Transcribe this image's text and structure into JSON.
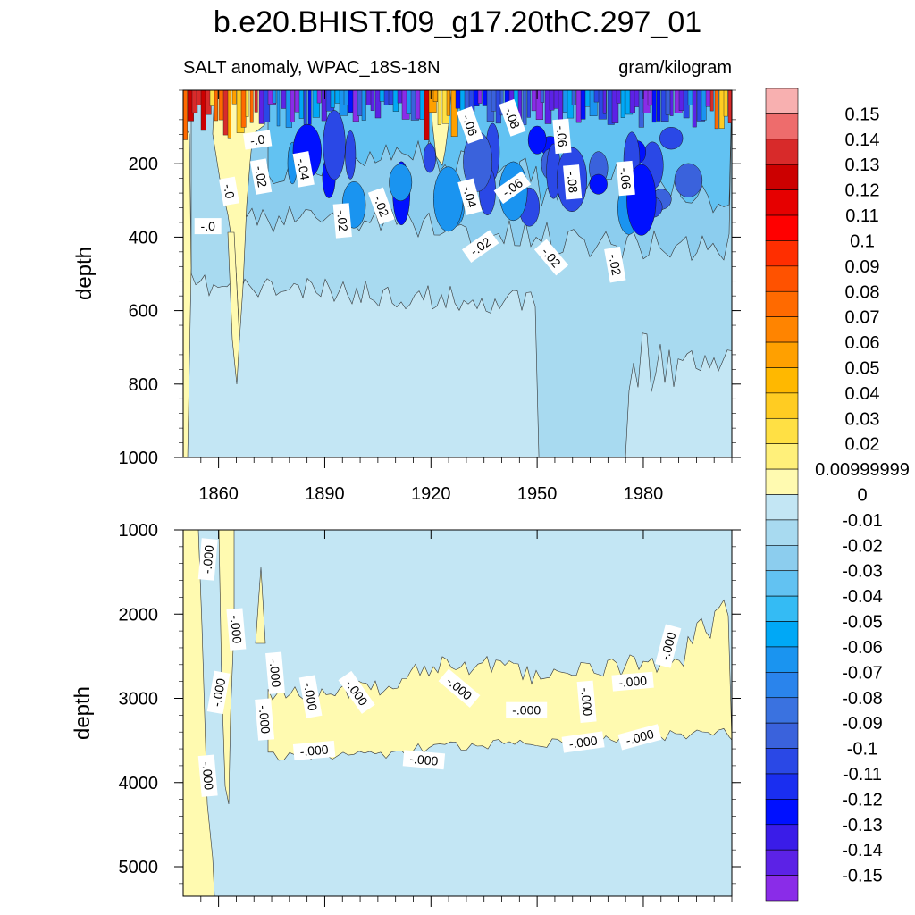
{
  "figure": {
    "title": "b.e20.BHIST.f09_g17.20thC.297_01",
    "subtitle_left": "SALT anomaly, WPAC_18S-18N",
    "subtitle_right": "gram/kilogram"
  },
  "chart_data": [
    {
      "type": "contour",
      "panel": "upper",
      "xlabel": "",
      "ylabel": "depth",
      "xlim": [
        1850,
        2005
      ],
      "ylim": [
        0,
        1000
      ],
      "y_inverted": true,
      "x_ticks": [
        1860,
        1890,
        1920,
        1950,
        1980
      ],
      "x_tick_labels": [
        "1860",
        "1890",
        "1920",
        "1950",
        "1980"
      ],
      "y_ticks": [
        200,
        400,
        600,
        800,
        1000
      ],
      "y_tick_labels": [
        "200",
        "400",
        "600",
        "800",
        "1000"
      ],
      "contour_labels": [
        {
          "text": "-.0",
          "x": 1871,
          "y": 135,
          "rot": -8
        },
        {
          "text": "-.02",
          "x": 1872,
          "y": 235,
          "rot": 80
        },
        {
          "text": "-.0",
          "x": 1863,
          "y": 275,
          "rot": 80
        },
        {
          "text": "-.0",
          "x": 1857,
          "y": 370,
          "rot": 0
        },
        {
          "text": "-.04",
          "x": 1884,
          "y": 215,
          "rot": 80
        },
        {
          "text": "-.02",
          "x": 1895,
          "y": 355,
          "rot": 85
        },
        {
          "text": "-.02",
          "x": 1906,
          "y": 315,
          "rot": 70
        },
        {
          "text": "-.06",
          "x": 1931,
          "y": 95,
          "rot": 70
        },
        {
          "text": "-.08",
          "x": 1943,
          "y": 75,
          "rot": 70
        },
        {
          "text": "-.04",
          "x": 1931,
          "y": 290,
          "rot": 75
        },
        {
          "text": "-.06",
          "x": 1943,
          "y": 265,
          "rot": -35
        },
        {
          "text": "-.02",
          "x": 1934,
          "y": 425,
          "rot": -35
        },
        {
          "text": "-.06",
          "x": 1957,
          "y": 125,
          "rot": 85
        },
        {
          "text": "-.08",
          "x": 1960,
          "y": 250,
          "rot": 85
        },
        {
          "text": "-.02",
          "x": 1954,
          "y": 455,
          "rot": 50
        },
        {
          "text": "-.06",
          "x": 1975,
          "y": 240,
          "rot": 85
        },
        {
          "text": "-.02",
          "x": 1972,
          "y": 475,
          "rot": 80
        }
      ]
    },
    {
      "type": "contour",
      "panel": "lower",
      "xlabel": "",
      "ylabel": "depth",
      "xlim": [
        1850,
        2005
      ],
      "ylim": [
        1000,
        5350
      ],
      "y_inverted": true,
      "x_ticks": [
        1860,
        1890,
        1920,
        1950,
        1980
      ],
      "y_ticks": [
        1000,
        2000,
        3000,
        4000,
        5000
      ],
      "y_tick_labels": [
        "1000",
        "2000",
        "3000",
        "4000",
        "5000"
      ],
      "contour_labels": [
        {
          "text": "-.000",
          "x": 1857,
          "y": 1350,
          "rot": -85
        },
        {
          "text": "-.000",
          "x": 1865,
          "y": 2180,
          "rot": 85
        },
        {
          "text": "-.000",
          "x": 1860,
          "y": 2930,
          "rot": -80
        },
        {
          "text": "-.000",
          "x": 1876,
          "y": 2700,
          "rot": 85
        },
        {
          "text": "-.000",
          "x": 1873,
          "y": 3250,
          "rot": 85
        },
        {
          "text": "-.000",
          "x": 1886,
          "y": 2980,
          "rot": 80
        },
        {
          "text": "-.000",
          "x": 1899,
          "y": 2930,
          "rot": 55
        },
        {
          "text": "-.000",
          "x": 1887,
          "y": 3620,
          "rot": -5
        },
        {
          "text": "-.000",
          "x": 1857,
          "y": 3920,
          "rot": 85
        },
        {
          "text": "-.000",
          "x": 1918,
          "y": 3730,
          "rot": 5
        },
        {
          "text": "-.000",
          "x": 1928,
          "y": 2880,
          "rot": 40
        },
        {
          "text": "-.000",
          "x": 1947,
          "y": 3140,
          "rot": 0
        },
        {
          "text": "-.000",
          "x": 1964,
          "y": 3040,
          "rot": 85
        },
        {
          "text": "-.000",
          "x": 1963,
          "y": 3520,
          "rot": -8
        },
        {
          "text": "-.000",
          "x": 1977,
          "y": 2800,
          "rot": -5
        },
        {
          "text": "-.000",
          "x": 1979,
          "y": 3460,
          "rot": -15
        },
        {
          "text": "-.000",
          "x": 1987,
          "y": 2380,
          "rot": -75
        }
      ]
    },
    {
      "type": "colorbar",
      "levels": [
        {
          "label": "0.15",
          "color": "#f8b0b0"
        },
        {
          "label": "0.14",
          "color": "#ee6c6c"
        },
        {
          "label": "0.13",
          "color": "#d82a2a"
        },
        {
          "label": "0.12",
          "color": "#cc0000"
        },
        {
          "label": "0.11",
          "color": "#e60000"
        },
        {
          "label": "0.1",
          "color": "#ff0000"
        },
        {
          "label": "0.09",
          "color": "#ff2e00"
        },
        {
          "label": "0.08",
          "color": "#ff5200"
        },
        {
          "label": "0.07",
          "color": "#ff6a00"
        },
        {
          "label": "0.06",
          "color": "#ff8400"
        },
        {
          "label": "0.05",
          "color": "#ffa000"
        },
        {
          "label": "0.04",
          "color": "#ffb800"
        },
        {
          "label": "0.03",
          "color": "#ffcc22"
        },
        {
          "label": "0.02",
          "color": "#ffe044"
        },
        {
          "label": "0.00999999",
          "color": "#fff07a"
        },
        {
          "label": "0",
          "color": "#fffab0"
        },
        {
          "label": "-0.01",
          "color": "#c3e6f4"
        },
        {
          "label": "-0.02",
          "color": "#a8daf0"
        },
        {
          "label": "-0.03",
          "color": "#8ccdee"
        },
        {
          "label": "-0.04",
          "color": "#62c2f2"
        },
        {
          "label": "-0.05",
          "color": "#34bbf4"
        },
        {
          "label": "-0.06",
          "color": "#00a8f6"
        },
        {
          "label": "-0.07",
          "color": "#1a94f0"
        },
        {
          "label": "-0.08",
          "color": "#2a84ec"
        },
        {
          "label": "-0.09",
          "color": "#3a72e0"
        },
        {
          "label": "-0.1",
          "color": "#3a62dc"
        },
        {
          "label": "-0.11",
          "color": "#2a48e6"
        },
        {
          "label": "-0.12",
          "color": "#1a2ef0"
        },
        {
          "label": "-0.13",
          "color": "#0010ff"
        },
        {
          "label": "-0.14",
          "color": "#3a1ce8"
        },
        {
          "label": "-0.15",
          "color": "#5c22e6"
        },
        {
          "label": "",
          "color": "#8a2ce8"
        }
      ]
    }
  ]
}
